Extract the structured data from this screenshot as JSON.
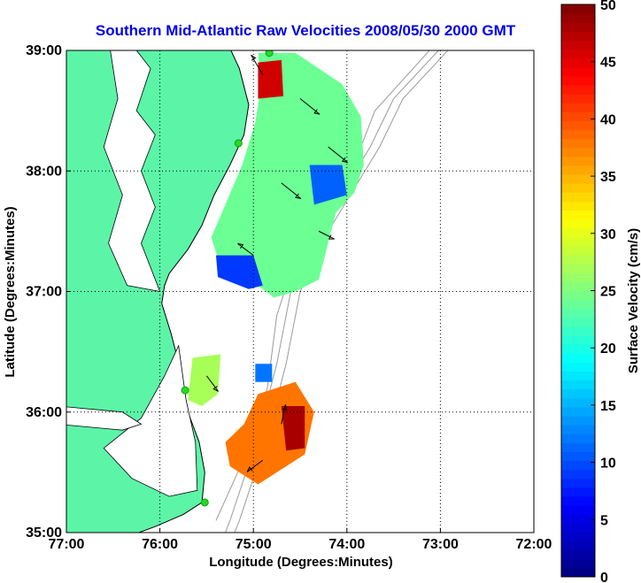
{
  "chart_data": {
    "type": "heatmap",
    "title": "Southern Mid-Atlantic Raw Velocities 2008/05/30 2000 GMT",
    "xlabel": "Longitude (Degrees:Minutes)",
    "ylabel": "Latitude (Degrees:Minutes)",
    "x_range": [
      -77,
      -72
    ],
    "y_range": [
      35,
      39
    ],
    "x_ticks": [
      {
        "value": -77,
        "label": "77:00"
      },
      {
        "value": -76,
        "label": "76:00"
      },
      {
        "value": -75,
        "label": "75:00"
      },
      {
        "value": -74,
        "label": "74:00"
      },
      {
        "value": -73,
        "label": "73:00"
      },
      {
        "value": -72,
        "label": "72:00"
      }
    ],
    "y_ticks": [
      {
        "value": 35,
        "label": "35:00"
      },
      {
        "value": 36,
        "label": "36:00"
      },
      {
        "value": 37,
        "label": "37:00"
      },
      {
        "value": 38,
        "label": "38:00"
      },
      {
        "value": 39,
        "label": "39:00"
      }
    ],
    "grid": true,
    "colorbar": {
      "label": "Surface Velocity (cm/s)",
      "range": [
        0,
        50
      ],
      "ticks": [
        "0",
        "5",
        "10",
        "15",
        "20",
        "25",
        "30",
        "35",
        "40",
        "45",
        "50"
      ],
      "colormap": "jet",
      "placement": "right"
    },
    "colors": {
      "land": "#5cf5a8",
      "title": "#0000e6",
      "contour": "#9a9a9a",
      "sites": "#2bd62b"
    },
    "radar_sites": [
      {
        "lon": -74.83,
        "lat": 38.98
      },
      {
        "lon": -75.16,
        "lat": 38.23
      },
      {
        "lon": -75.73,
        "lat": 36.18
      },
      {
        "lon": -75.52,
        "lat": 35.25
      }
    ],
    "velocity_regions": [
      {
        "name": "north-core",
        "polygon": [
          [
            -74.95,
            38.98
          ],
          [
            -74.55,
            38.98
          ],
          [
            -74.05,
            38.72
          ],
          [
            -73.85,
            38.45
          ],
          [
            -73.82,
            38.05
          ],
          [
            -73.92,
            37.82
          ],
          [
            -74.12,
            37.65
          ],
          [
            -74.3,
            37.1
          ],
          [
            -74.55,
            37.0
          ],
          [
            -74.78,
            36.95
          ],
          [
            -74.95,
            37.05
          ],
          [
            -75.35,
            37.2
          ],
          [
            -75.45,
            37.45
          ],
          [
            -75.3,
            37.72
          ],
          [
            -75.12,
            38.05
          ],
          [
            -74.98,
            38.4
          ],
          [
            -74.92,
            38.7
          ]
        ],
        "speed": 24
      },
      {
        "name": "north-fast",
        "polygon": [
          [
            -74.95,
            38.9
          ],
          [
            -74.7,
            38.92
          ],
          [
            -74.68,
            38.62
          ],
          [
            -74.95,
            38.6
          ]
        ],
        "speed": 46
      },
      {
        "name": "north-slow-east",
        "polygon": [
          [
            -74.4,
            38.05
          ],
          [
            -74.05,
            38.05
          ],
          [
            -74.0,
            37.8
          ],
          [
            -74.35,
            37.72
          ]
        ],
        "speed": 11
      },
      {
        "name": "north-slow-sw",
        "polygon": [
          [
            -75.4,
            37.3
          ],
          [
            -75.0,
            37.3
          ],
          [
            -74.9,
            37.05
          ],
          [
            -75.05,
            37.02
          ],
          [
            -75.38,
            37.12
          ]
        ],
        "speed": 9
      },
      {
        "name": "mid-patch",
        "polygon": [
          [
            -75.65,
            36.45
          ],
          [
            -75.35,
            36.48
          ],
          [
            -75.38,
            36.15
          ],
          [
            -75.55,
            36.05
          ],
          [
            -75.7,
            36.1
          ]
        ],
        "speed": 27
      },
      {
        "name": "mid-small",
        "polygon": [
          [
            -74.98,
            36.4
          ],
          [
            -74.8,
            36.4
          ],
          [
            -74.8,
            36.25
          ],
          [
            -74.98,
            36.25
          ]
        ],
        "speed": 12
      },
      {
        "name": "south-core",
        "polygon": [
          [
            -74.95,
            36.15
          ],
          [
            -74.55,
            36.25
          ],
          [
            -74.35,
            36.0
          ],
          [
            -74.45,
            35.65
          ],
          [
            -74.65,
            35.55
          ],
          [
            -74.95,
            35.4
          ],
          [
            -75.25,
            35.55
          ],
          [
            -75.3,
            35.75
          ],
          [
            -75.1,
            35.9
          ]
        ],
        "speed": 38
      },
      {
        "name": "south-fast",
        "polygon": [
          [
            -74.7,
            36.05
          ],
          [
            -74.45,
            36.05
          ],
          [
            -74.45,
            35.7
          ],
          [
            -74.65,
            35.68
          ]
        ],
        "speed": 48
      }
    ],
    "arrow_vectors": [
      {
        "lon": -74.9,
        "lat": 38.8,
        "u": -0.3,
        "v": 0.5,
        "speed": 45
      },
      {
        "lon": -74.5,
        "lat": 38.6,
        "u": 0.5,
        "v": -0.4,
        "speed": 25
      },
      {
        "lon": -74.2,
        "lat": 38.2,
        "u": 0.5,
        "v": -0.4,
        "speed": 22
      },
      {
        "lon": -74.7,
        "lat": 37.9,
        "u": 0.5,
        "v": -0.4,
        "speed": 24
      },
      {
        "lon": -74.3,
        "lat": 37.5,
        "u": 0.4,
        "v": -0.2,
        "speed": 20
      },
      {
        "lon": -75.0,
        "lat": 37.3,
        "u": -0.4,
        "v": 0.3,
        "speed": 10
      },
      {
        "lon": -75.5,
        "lat": 36.3,
        "u": 0.3,
        "v": -0.4,
        "speed": 27
      },
      {
        "lon": -74.7,
        "lat": 35.9,
        "u": 0.1,
        "v": 0.5,
        "speed": 40
      },
      {
        "lon": -74.9,
        "lat": 35.6,
        "u": -0.4,
        "v": -0.3,
        "speed": 36
      }
    ]
  }
}
